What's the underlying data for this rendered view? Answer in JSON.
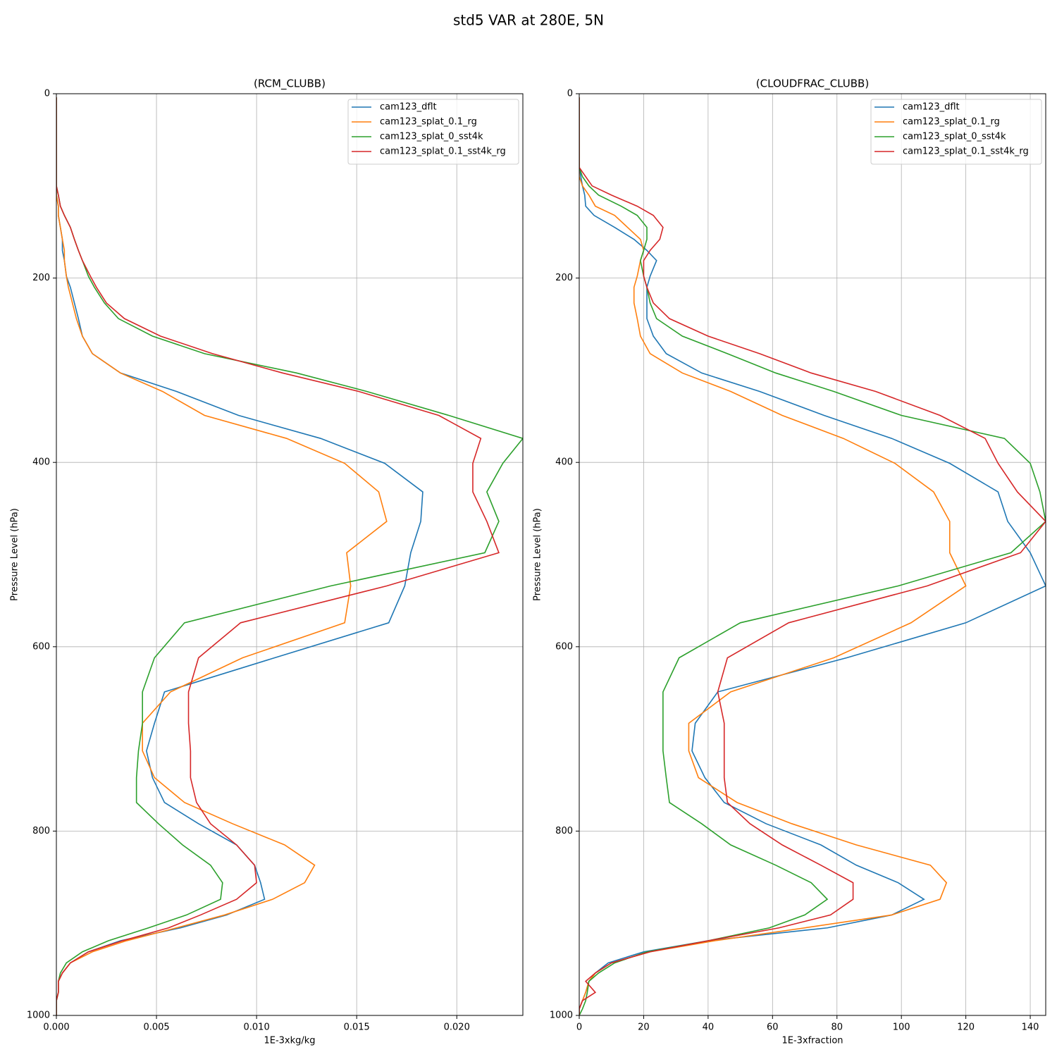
{
  "title": "std5 VAR at 280E, 5N",
  "chart_data": [
    {
      "type": "line",
      "title": "(RCM_CLUBB)",
      "xlabel": "1E-3xkg/kg",
      "ylabel": "Pressure Level (hPa)",
      "xlim": [
        0,
        0.0233
      ],
      "ylim": [
        1000,
        0
      ],
      "xticks": [
        {
          "value": 0,
          "label": "0.000"
        },
        {
          "value": 0.005,
          "label": "0.005"
        },
        {
          "value": 0.01,
          "label": "0.010"
        },
        {
          "value": 0.015,
          "label": "0.015"
        },
        {
          "value": 0.02,
          "label": "0.020"
        }
      ],
      "yticks": [
        0,
        200,
        400,
        600,
        800,
        1000
      ],
      "grid": true,
      "legend": "upper right",
      "y": [
        4,
        60,
        70,
        80,
        90,
        100,
        110,
        122,
        132,
        145,
        158,
        170,
        181,
        198,
        210,
        227,
        244,
        263,
        282,
        303,
        323,
        349,
        374,
        401,
        432,
        464,
        498,
        534,
        574,
        612,
        649,
        683,
        713,
        742,
        769,
        792,
        815,
        837,
        856,
        874,
        891,
        905,
        919,
        931,
        943,
        954,
        963,
        975,
        984,
        993,
        1000
      ],
      "series": [
        {
          "name": "cam123_dflt",
          "color": "#1f77b4",
          "values": [
            0,
            0,
            0,
            0,
            0,
            0,
            0,
            0.0001,
            0.0001,
            0.0002,
            0.0003,
            0.0003,
            0.0004,
            0.0005,
            0.0007,
            0.0009,
            0.0011,
            0.0013,
            0.0018,
            0.0032,
            0.006,
            0.0091,
            0.0132,
            0.0164,
            0.0183,
            0.0182,
            0.0177,
            0.0174,
            0.0166,
            0.0109,
            0.0054,
            0.0049,
            0.0045,
            0.0048,
            0.0054,
            0.0071,
            0.009,
            0.0099,
            0.0102,
            0.0104,
            0.0085,
            0.0062,
            0.0032,
            0.0016,
            0.0007,
            0.0003,
            0.0001,
            0.0001,
            0,
            0,
            0
          ]
        },
        {
          "name": "cam123_splat_0.1_rg",
          "color": "#ff7f0e",
          "values": [
            0,
            0,
            0,
            0,
            0,
            0,
            0,
            0.0001,
            0.0001,
            0.0002,
            0.0003,
            0.0004,
            0.0004,
            0.0005,
            0.0006,
            0.0008,
            0.001,
            0.0013,
            0.0018,
            0.0032,
            0.0053,
            0.0074,
            0.0115,
            0.0144,
            0.0161,
            0.0165,
            0.0145,
            0.0147,
            0.0144,
            0.0093,
            0.0057,
            0.0043,
            0.0043,
            0.0049,
            0.0064,
            0.0088,
            0.0114,
            0.0129,
            0.0124,
            0.0108,
            0.0084,
            0.006,
            0.0035,
            0.0018,
            0.0007,
            0.0003,
            0.0001,
            0.0001,
            0,
            0,
            0
          ]
        },
        {
          "name": "cam123_splat_0_sst4k",
          "color": "#2ca02c",
          "values": [
            0,
            0,
            0,
            0,
            0,
            0,
            0.0001,
            0.0002,
            0.0004,
            0.0007,
            0.0009,
            0.0011,
            0.0013,
            0.0016,
            0.0019,
            0.0024,
            0.0031,
            0.0048,
            0.0074,
            0.012,
            0.0155,
            0.0196,
            0.0233,
            0.0223,
            0.0215,
            0.0221,
            0.0214,
            0.0137,
            0.0064,
            0.0049,
            0.0043,
            0.0043,
            0.0041,
            0.004,
            0.004,
            0.0051,
            0.0063,
            0.0077,
            0.0083,
            0.0082,
            0.0065,
            0.0046,
            0.0026,
            0.0013,
            0.0005,
            0.0002,
            0.0001,
            0.0001,
            0,
            0,
            0
          ]
        },
        {
          "name": "cam123_splat_0.1_sst4k_rg",
          "color": "#d62728",
          "values": [
            0,
            0,
            0,
            0,
            0,
            0,
            0.0001,
            0.0002,
            0.0004,
            0.0007,
            0.0009,
            0.0011,
            0.0013,
            0.0017,
            0.002,
            0.0025,
            0.0034,
            0.0052,
            0.0078,
            0.0113,
            0.0151,
            0.0191,
            0.0212,
            0.0208,
            0.0208,
            0.0215,
            0.0221,
            0.0165,
            0.0092,
            0.0071,
            0.0066,
            0.0066,
            0.0067,
            0.0067,
            0.007,
            0.0077,
            0.009,
            0.0099,
            0.01,
            0.009,
            0.0072,
            0.0056,
            0.0033,
            0.0016,
            0.0007,
            0.0003,
            0.0001,
            0.0001,
            0,
            0,
            0
          ]
        }
      ]
    },
    {
      "type": "line",
      "title": "(CLOUDFRAC_CLUBB)",
      "xlabel": "1E-3xfraction",
      "ylabel": "Pressure Level (hPa)",
      "xlim": [
        0,
        144.8
      ],
      "ylim": [
        1000,
        0
      ],
      "xticks": [
        0,
        20,
        40,
        60,
        80,
        100,
        120,
        140
      ],
      "yticks": [
        0,
        200,
        400,
        600,
        800,
        1000
      ],
      "grid": true,
      "legend": "upper right",
      "y": [
        4,
        60,
        70,
        80,
        90,
        100,
        110,
        122,
        132,
        145,
        158,
        170,
        181,
        198,
        210,
        227,
        244,
        263,
        282,
        303,
        323,
        349,
        374,
        401,
        432,
        464,
        498,
        534,
        574,
        612,
        649,
        683,
        713,
        742,
        769,
        792,
        815,
        837,
        856,
        874,
        891,
        905,
        919,
        931,
        943,
        954,
        963,
        975,
        984,
        993,
        1000
      ],
      "series": [
        {
          "name": "cam123_dflt",
          "color": "#1f77b4",
          "values": [
            0,
            0,
            0,
            0,
            0.5,
            1,
            1.7,
            2,
            4.6,
            11,
            17,
            21,
            24,
            22,
            21,
            21,
            21,
            23,
            27,
            38,
            56,
            76,
            97,
            115,
            130,
            133,
            140,
            144.8,
            120,
            83,
            43,
            36,
            35,
            39,
            45,
            58,
            75,
            86,
            99,
            107,
            97,
            77,
            40,
            20,
            9,
            5,
            3,
            2,
            1,
            0,
            0
          ]
        },
        {
          "name": "cam123_splat_0.1_rg",
          "color": "#ff7f0e",
          "values": [
            0,
            0,
            0,
            0,
            0,
            1,
            3,
            5,
            11,
            15,
            19,
            20,
            19,
            18,
            17,
            17,
            18,
            19,
            22,
            32,
            47,
            63,
            82,
            98,
            110,
            115,
            115,
            120,
            103,
            79,
            47,
            34,
            34,
            37,
            49,
            66,
            86,
            109,
            114,
            112,
            97,
            70,
            42,
            22,
            10,
            5,
            3,
            2,
            1,
            0,
            0
          ]
        },
        {
          "name": "cam123_splat_0_sst4k",
          "color": "#2ca02c",
          "values": [
            0,
            0,
            0,
            0,
            1,
            3,
            6,
            13,
            18,
            21,
            21,
            20,
            19,
            20,
            21,
            22,
            24,
            32,
            46,
            61,
            79,
            100,
            132,
            140,
            143,
            144.8,
            134,
            99,
            50,
            31,
            26,
            26,
            26,
            27,
            28,
            38,
            47,
            61,
            72,
            77,
            70,
            59,
            40,
            21,
            11,
            6,
            3,
            2.5,
            2,
            1,
            0
          ]
        },
        {
          "name": "cam123_splat_0.1_sst4k_rg",
          "color": "#d62728",
          "values": [
            0,
            0,
            0,
            0,
            2,
            4,
            10,
            18,
            23,
            26,
            25,
            22,
            20,
            20,
            21,
            23,
            28,
            40,
            56,
            72,
            92,
            112,
            126,
            130,
            136,
            144.8,
            137,
            108,
            65,
            46,
            43,
            45,
            45,
            45,
            46,
            53,
            63,
            75,
            85,
            85,
            78,
            62,
            40,
            22,
            10,
            5,
            2,
            5,
            1,
            0,
            0
          ]
        }
      ]
    }
  ]
}
